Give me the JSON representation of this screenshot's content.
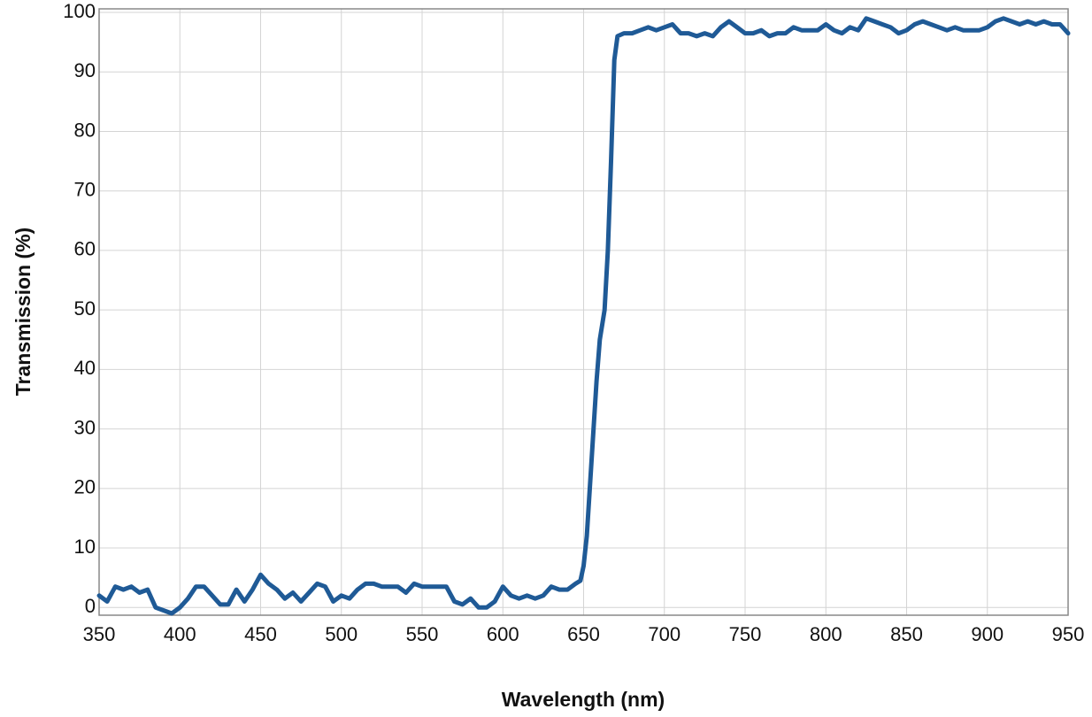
{
  "chart_data": {
    "type": "line",
    "x_label": "Wavelength (nm)",
    "y_label": "Transmission (%)",
    "xlim": [
      350,
      950
    ],
    "ylim": [
      -1.3,
      100.6
    ],
    "xticks": [
      350,
      400,
      450,
      500,
      550,
      600,
      650,
      700,
      750,
      800,
      850,
      900,
      950
    ],
    "yticks": [
      0,
      10,
      20,
      30,
      40,
      50,
      60,
      70,
      80,
      90,
      100
    ],
    "grid": true,
    "x": [
      350,
      355,
      360,
      365,
      370,
      375,
      380,
      385,
      390,
      395,
      400,
      405,
      410,
      415,
      420,
      425,
      430,
      435,
      440,
      445,
      450,
      455,
      460,
      465,
      470,
      475,
      480,
      485,
      490,
      495,
      500,
      505,
      510,
      515,
      520,
      525,
      530,
      535,
      540,
      545,
      550,
      555,
      560,
      565,
      570,
      575,
      580,
      585,
      590,
      595,
      600,
      605,
      610,
      615,
      620,
      625,
      630,
      635,
      640,
      645,
      648,
      650,
      652,
      655,
      658,
      660,
      663,
      665,
      667,
      669,
      671,
      675,
      680,
      685,
      690,
      695,
      700,
      705,
      710,
      715,
      720,
      725,
      730,
      735,
      740,
      745,
      750,
      755,
      760,
      765,
      770,
      775,
      780,
      785,
      790,
      795,
      800,
      805,
      810,
      815,
      820,
      825,
      830,
      835,
      840,
      845,
      850,
      855,
      860,
      865,
      870,
      875,
      880,
      885,
      890,
      895,
      900,
      905,
      910,
      915,
      920,
      925,
      930,
      935,
      940,
      945,
      950
    ],
    "series": [
      {
        "name": "Transmission",
        "color": "#1f5a96",
        "values": [
          2,
          1,
          3.5,
          3,
          3.5,
          2.5,
          3,
          0,
          -0.5,
          -1,
          0,
          1.5,
          3.5,
          3.5,
          2,
          0.5,
          0.5,
          3,
          1,
          3,
          5.5,
          4,
          3,
          1.5,
          2.5,
          1,
          2.5,
          4,
          3.5,
          1,
          2,
          1.5,
          3,
          4,
          4,
          3.5,
          3.5,
          3.5,
          2.5,
          4,
          3.5,
          3.5,
          3.5,
          3.5,
          1,
          0.5,
          1.5,
          0,
          0,
          1,
          3.5,
          2,
          1.5,
          2,
          1.5,
          2,
          3.5,
          3,
          3,
          4,
          4.5,
          7,
          12,
          25,
          38,
          45,
          50,
          60,
          75,
          92,
          96,
          96.5,
          96.5,
          97,
          97.5,
          97,
          97.5,
          98,
          96.5,
          96.5,
          96,
          96.5,
          96,
          97.5,
          98.5,
          97.5,
          96.5,
          96.5,
          97,
          96,
          96.5,
          96.5,
          97.5,
          97,
          97,
          97,
          98,
          97,
          96.5,
          97.5,
          97,
          99,
          98.5,
          98,
          97.5,
          96.5,
          97,
          98,
          98.5,
          98,
          97.5,
          97,
          97.5,
          97,
          97,
          97,
          97.5,
          98.5,
          99,
          98.5,
          98,
          98.5,
          98,
          98.5,
          98,
          98,
          96.5
        ]
      }
    ]
  }
}
